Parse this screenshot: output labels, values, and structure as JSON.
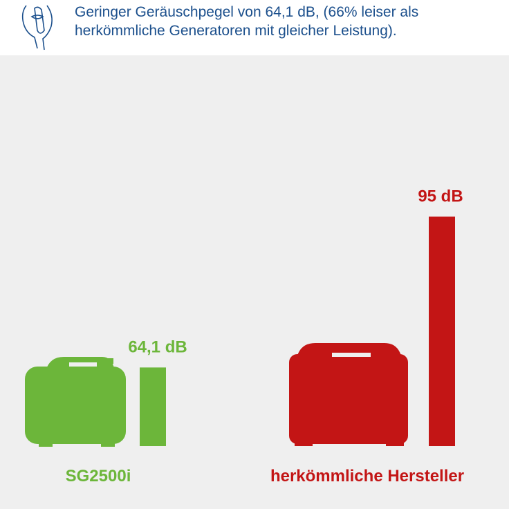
{
  "chart_data": {
    "type": "bar",
    "title": "Geringer Geräuschpegel von 64,1 dB, (66% leiser als herkömmliche Generatoren mit gleicher Leistung).",
    "categories": [
      "SG2500i",
      "herkömmliche Hersteller"
    ],
    "values": [
      64.1,
      95
    ],
    "value_labels": [
      "64,1 dB",
      "95 dB"
    ],
    "colors": [
      "#6cb63a",
      "#c31515"
    ],
    "ylim": [
      48,
      100
    ]
  }
}
